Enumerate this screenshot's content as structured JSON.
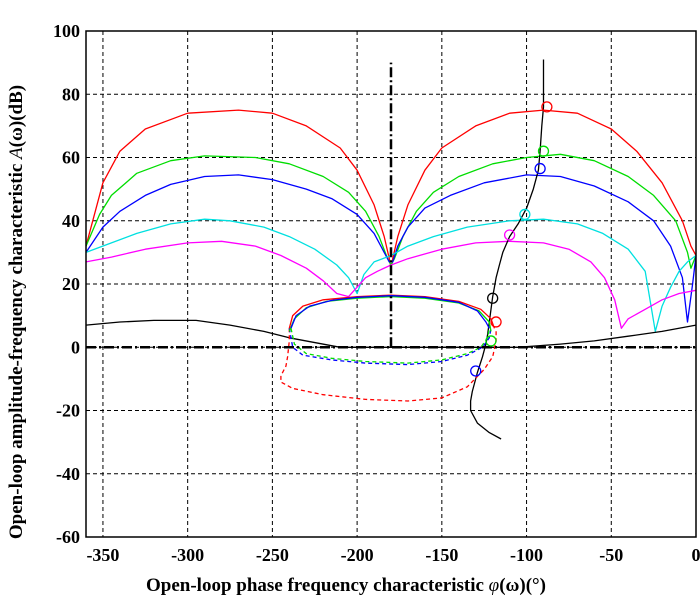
{
  "chart_data": {
    "type": "line",
    "xlabel": {
      "prefix": "Open-loop phase frequency characteristic ",
      "symbol": "φ",
      "middle": "(ω)",
      "suffix": "(°)"
    },
    "ylabel": {
      "prefix": "Open-loop amplitude-frequency characteristic ",
      "symbol": "A",
      "middle": "(ω)",
      "suffix": "(dB)"
    },
    "xlim": [
      -360,
      0
    ],
    "ylim": [
      -60,
      100
    ],
    "xticks": [
      "-350",
      "-300",
      "-250",
      "-200",
      "-150",
      "-100",
      "-50",
      "0"
    ],
    "yticks": [
      "-60",
      "-40",
      "-20",
      "0",
      "20",
      "40",
      "60",
      "80",
      "100"
    ],
    "grid": true,
    "colors": {
      "red": "#ff0000",
      "green": "#00dd00",
      "blue": "#0000ff",
      "cyan": "#00e0e0",
      "magenta": "#ff00ff",
      "black": "#000000"
    },
    "series": [
      {
        "color": "red",
        "values": [
          [
            -360,
            32
          ],
          [
            -350,
            52
          ],
          [
            -340,
            62
          ],
          [
            -325,
            69
          ],
          [
            -300,
            74
          ],
          [
            -270,
            75
          ],
          [
            -250,
            74
          ],
          [
            -230,
            70
          ],
          [
            -210,
            63
          ],
          [
            -200,
            56
          ],
          [
            -190,
            45
          ],
          [
            -184,
            35
          ],
          [
            -181,
            28
          ],
          [
            -180,
            25
          ],
          [
            -179,
            28
          ],
          [
            -176,
            35
          ],
          [
            -170,
            45
          ],
          [
            -160,
            56
          ],
          [
            -150,
            63
          ],
          [
            -130,
            70
          ],
          [
            -110,
            74
          ],
          [
            -90,
            75
          ],
          [
            -70,
            74
          ],
          [
            -50,
            69
          ],
          [
            -35,
            62
          ],
          [
            -20,
            52
          ],
          [
            -8,
            40
          ],
          [
            -3,
            32
          ],
          [
            0,
            29
          ]
        ]
      },
      {
        "color": "green",
        "values": [
          [
            -360,
            32
          ],
          [
            -352,
            42
          ],
          [
            -345,
            48
          ],
          [
            -330,
            55
          ],
          [
            -310,
            59
          ],
          [
            -290,
            60.5
          ],
          [
            -260,
            60
          ],
          [
            -240,
            58
          ],
          [
            -220,
            54
          ],
          [
            -205,
            49
          ],
          [
            -195,
            43
          ],
          [
            -187,
            35
          ],
          [
            -182,
            28
          ],
          [
            -180,
            26
          ],
          [
            -178,
            28
          ],
          [
            -173,
            35
          ],
          [
            -165,
            43
          ],
          [
            -155,
            49
          ],
          [
            -140,
            54
          ],
          [
            -120,
            58
          ],
          [
            -100,
            60
          ],
          [
            -80,
            61
          ],
          [
            -60,
            59
          ],
          [
            -40,
            54
          ],
          [
            -25,
            48
          ],
          [
            -12,
            40
          ],
          [
            -5,
            30
          ],
          [
            -3,
            25
          ],
          [
            0,
            29
          ]
        ]
      },
      {
        "color": "blue",
        "values": [
          [
            -360,
            30
          ],
          [
            -350,
            38
          ],
          [
            -340,
            43
          ],
          [
            -325,
            48
          ],
          [
            -310,
            51.5
          ],
          [
            -290,
            54
          ],
          [
            -270,
            54.5
          ],
          [
            -250,
            53
          ],
          [
            -230,
            50
          ],
          [
            -215,
            47
          ],
          [
            -200,
            42
          ],
          [
            -190,
            36
          ],
          [
            -184,
            30
          ],
          [
            -181,
            27
          ],
          [
            -179,
            27
          ],
          [
            -176,
            32
          ],
          [
            -170,
            38
          ],
          [
            -160,
            44
          ],
          [
            -145,
            48
          ],
          [
            -125,
            52
          ],
          [
            -100,
            54.5
          ],
          [
            -80,
            54
          ],
          [
            -60,
            51
          ],
          [
            -40,
            46
          ],
          [
            -25,
            40
          ],
          [
            -15,
            32
          ],
          [
            -8,
            22
          ],
          [
            -5,
            8
          ],
          [
            -2,
            20
          ],
          [
            0,
            29
          ]
        ]
      },
      {
        "color": "cyan",
        "values": [
          [
            -360,
            30
          ],
          [
            -345,
            33
          ],
          [
            -330,
            36
          ],
          [
            -310,
            39
          ],
          [
            -290,
            40.5
          ],
          [
            -275,
            40
          ],
          [
            -255,
            38
          ],
          [
            -240,
            35
          ],
          [
            -225,
            31
          ],
          [
            -212,
            26
          ],
          [
            -205,
            22
          ],
          [
            -200,
            17
          ],
          [
            -196,
            23
          ],
          [
            -190,
            27
          ],
          [
            -180,
            29
          ],
          [
            -170,
            32
          ],
          [
            -155,
            35
          ],
          [
            -135,
            38
          ],
          [
            -110,
            40
          ],
          [
            -90,
            40.5
          ],
          [
            -70,
            39
          ],
          [
            -55,
            36
          ],
          [
            -40,
            31
          ],
          [
            -30,
            24
          ],
          [
            -24,
            5
          ],
          [
            -20,
            13
          ],
          [
            -15,
            19
          ],
          [
            -10,
            24
          ],
          [
            -5,
            27
          ],
          [
            0,
            29
          ]
        ]
      },
      {
        "color": "magenta",
        "values": [
          [
            -360,
            27
          ],
          [
            -345,
            28.5
          ],
          [
            -325,
            31
          ],
          [
            -300,
            33
          ],
          [
            -280,
            33.5
          ],
          [
            -260,
            32
          ],
          [
            -245,
            29
          ],
          [
            -230,
            25
          ],
          [
            -220,
            21
          ],
          [
            -212,
            17
          ],
          [
            -205,
            16
          ],
          [
            -200,
            19
          ],
          [
            -195,
            22
          ],
          [
            -188,
            24
          ],
          [
            -180,
            26
          ],
          [
            -170,
            28
          ],
          [
            -150,
            31
          ],
          [
            -130,
            33
          ],
          [
            -110,
            33.5
          ],
          [
            -90,
            33
          ],
          [
            -75,
            31
          ],
          [
            -62,
            27
          ],
          [
            -54,
            22
          ],
          [
            -48,
            15
          ],
          [
            -44,
            6
          ],
          [
            -40,
            9
          ],
          [
            -30,
            12
          ],
          [
            -20,
            15
          ],
          [
            -10,
            17
          ],
          [
            0,
            18
          ]
        ]
      },
      {
        "color": "black",
        "values": [
          [
            -360,
            7
          ],
          [
            -340,
            8
          ],
          [
            -320,
            8.5
          ],
          [
            -295,
            8.5
          ],
          [
            -275,
            7
          ],
          [
            -255,
            5
          ],
          [
            -240,
            3
          ],
          [
            -210,
            0
          ],
          [
            -180,
            0
          ],
          [
            -150,
            0
          ],
          [
            -105,
            0
          ],
          [
            -80,
            1
          ],
          [
            -60,
            2
          ],
          [
            -40,
            3.5
          ],
          [
            -20,
            5
          ],
          [
            0,
            7
          ]
        ]
      },
      {
        "color": "black",
        "values": [
          [
            -90,
            91
          ],
          [
            -90,
            85
          ],
          [
            -90,
            76
          ],
          [
            -91,
            70
          ],
          [
            -92,
            62
          ],
          [
            -93,
            56
          ],
          [
            -96,
            50
          ],
          [
            -100,
            44
          ],
          [
            -105,
            39
          ],
          [
            -110,
            35
          ],
          [
            -114,
            30
          ],
          [
            -116,
            26
          ],
          [
            -118,
            22
          ],
          [
            -119,
            19
          ],
          [
            -120,
            16
          ],
          [
            -121,
            12
          ],
          [
            -122,
            8
          ],
          [
            -123,
            4
          ],
          [
            -124,
            1
          ],
          [
            -126,
            -3
          ],
          [
            -129,
            -8
          ],
          [
            -132,
            -14
          ],
          [
            -133,
            -17
          ],
          [
            -133,
            -20
          ],
          [
            -129,
            -24
          ],
          [
            -122,
            -27
          ],
          [
            -115,
            -29
          ]
        ]
      },
      {
        "color": "red",
        "dash": true,
        "values": [
          [
            -240,
            6
          ],
          [
            -240,
            2
          ],
          [
            -241,
            -3
          ],
          [
            -242,
            -6
          ],
          [
            -245,
            -9
          ],
          [
            -245,
            -11
          ],
          [
            -238,
            -13
          ],
          [
            -220,
            -15
          ],
          [
            -195,
            -16.5
          ],
          [
            -170,
            -17
          ],
          [
            -150,
            -16
          ],
          [
            -135,
            -12.5
          ],
          [
            -125,
            -7
          ],
          [
            -120,
            -3
          ],
          [
            -118,
            2
          ],
          [
            -118,
            6
          ]
        ]
      },
      {
        "color": "blue",
        "dash": true,
        "values": [
          [
            -240,
            6
          ],
          [
            -238,
            0
          ],
          [
            -232,
            -2.5
          ],
          [
            -215,
            -4
          ],
          [
            -195,
            -5
          ],
          [
            -170,
            -5.5
          ],
          [
            -150,
            -4.5
          ],
          [
            -135,
            -2.5
          ],
          [
            -126,
            0
          ],
          [
            -122,
            3
          ],
          [
            -121,
            6
          ]
        ]
      },
      {
        "color": "green",
        "dash": true,
        "values": [
          [
            -239,
            6
          ],
          [
            -237,
            1
          ],
          [
            -230,
            -2
          ],
          [
            -215,
            -3.5
          ],
          [
            -195,
            -4.5
          ],
          [
            -170,
            -5
          ],
          [
            -150,
            -4
          ],
          [
            -135,
            -2
          ],
          [
            -127,
            0
          ],
          [
            -123,
            3
          ],
          [
            -122,
            6
          ]
        ]
      },
      {
        "color": "red",
        "values": [
          [
            -240,
            6
          ],
          [
            -238,
            10
          ],
          [
            -232,
            13
          ],
          [
            -220,
            15
          ],
          [
            -200,
            16
          ],
          [
            -180,
            16.5
          ],
          [
            -160,
            16
          ],
          [
            -140,
            14.5
          ],
          [
            -127,
            12
          ],
          [
            -121,
            9
          ],
          [
            -119,
            6
          ]
        ]
      },
      {
        "color": "green",
        "values": [
          [
            -240,
            5
          ],
          [
            -237,
            9
          ],
          [
            -230,
            12.5
          ],
          [
            -218,
            14.5
          ],
          [
            -200,
            15.5
          ],
          [
            -180,
            16
          ],
          [
            -160,
            15.5
          ],
          [
            -140,
            14
          ],
          [
            -128,
            11.5
          ],
          [
            -122,
            8
          ],
          [
            -121,
            5
          ]
        ]
      },
      {
        "color": "blue",
        "values": [
          [
            -239,
            6
          ],
          [
            -236,
            10
          ],
          [
            -228,
            13
          ],
          [
            -215,
            14.8
          ],
          [
            -200,
            15.8
          ],
          [
            -180,
            16.3
          ],
          [
            -160,
            15.8
          ],
          [
            -140,
            14.2
          ],
          [
            -129,
            11.5
          ],
          [
            -124,
            8
          ],
          [
            -122,
            6
          ]
        ]
      }
    ],
    "markers": [
      {
        "color": "red",
        "x": -88,
        "y": 76
      },
      {
        "color": "green",
        "x": -90,
        "y": 62
      },
      {
        "color": "blue",
        "x": -92,
        "y": 56.5
      },
      {
        "color": "cyan",
        "x": -101,
        "y": 42
      },
      {
        "color": "magenta",
        "x": -110,
        "y": 35.5
      },
      {
        "color": "black",
        "x": -120,
        "y": 15.5
      },
      {
        "color": "red",
        "x": -118,
        "y": 8
      },
      {
        "color": "green",
        "x": -121,
        "y": 2
      },
      {
        "color": "blue",
        "x": -130,
        "y": -7.5
      }
    ],
    "reference_lines": [
      {
        "orientation": "vertical",
        "x": -180,
        "from": 0,
        "to": 90
      },
      {
        "orientation": "horizontal",
        "y": 0,
        "from": -360,
        "to": 0
      }
    ]
  }
}
